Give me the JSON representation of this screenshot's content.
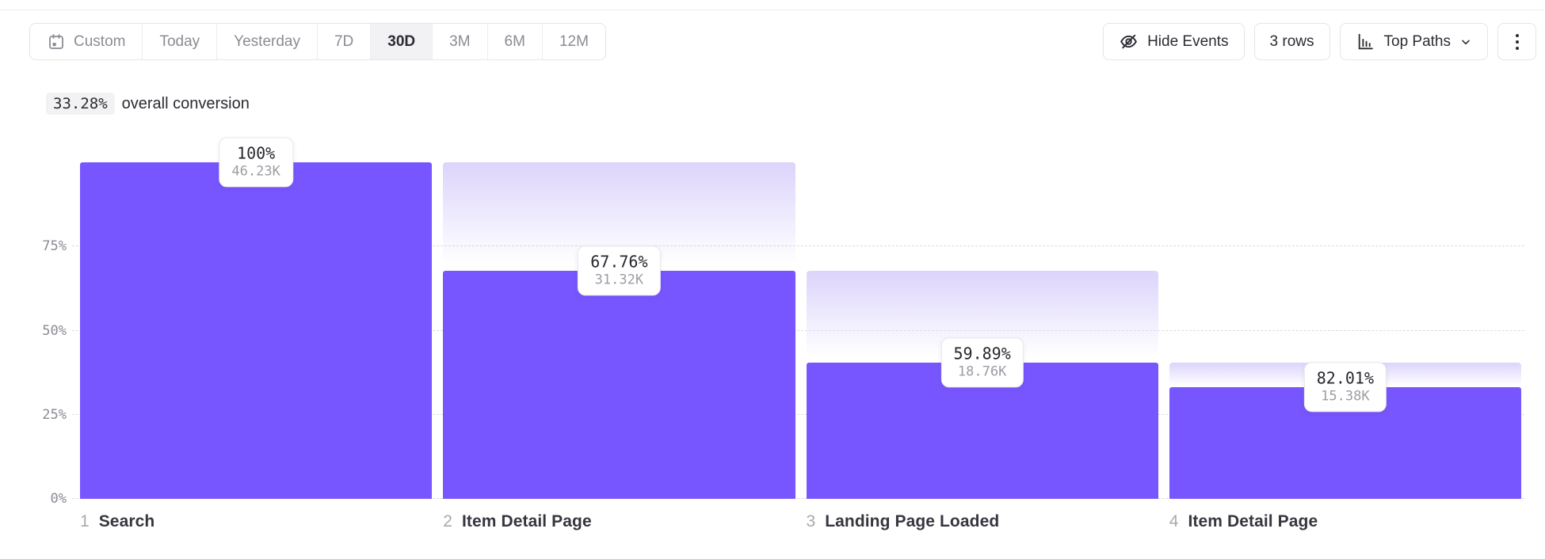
{
  "toolbar": {
    "date_ranges": [
      {
        "label": "Custom",
        "active": false,
        "icon": "calendar-icon"
      },
      {
        "label": "Today",
        "active": false
      },
      {
        "label": "Yesterday",
        "active": false
      },
      {
        "label": "7D",
        "active": false
      },
      {
        "label": "30D",
        "active": true
      },
      {
        "label": "3M",
        "active": false
      },
      {
        "label": "6M",
        "active": false
      },
      {
        "label": "12M",
        "active": false
      }
    ],
    "hide_events_label": "Hide Events",
    "rows_label": "3 rows",
    "top_paths_label": "Top Paths"
  },
  "summary": {
    "value": "33.28%",
    "text": "overall conversion"
  },
  "chart_data": {
    "type": "funnel",
    "title": "33.28% overall conversion",
    "y_ticks": [
      "75%",
      "50%",
      "25%",
      "0%"
    ],
    "ylim": [
      0,
      100
    ],
    "grid": "dashed horizontal at 0/25/50/75%",
    "steps": [
      {
        "index": "1",
        "name": "Search",
        "percent_label": "100%",
        "count_label": "46.23K",
        "height_pct": 100,
        "prev_height_pct": 100
      },
      {
        "index": "2",
        "name": "Item Detail Page",
        "percent_label": "67.76%",
        "count_label": "31.32K",
        "height_pct": 67.76,
        "prev_height_pct": 100
      },
      {
        "index": "3",
        "name": "Landing Page Loaded",
        "percent_label": "59.89%",
        "count_label": "18.76K",
        "height_pct": 40.58,
        "prev_height_pct": 67.76
      },
      {
        "index": "4",
        "name": "Item Detail Page",
        "percent_label": "82.01%",
        "count_label": "15.38K",
        "height_pct": 33.27,
        "prev_height_pct": 40.58
      }
    ],
    "colors": {
      "bar": "#7856FF",
      "gradient_top": "#DCD4FB",
      "gridline": "#dcdce3"
    }
  }
}
